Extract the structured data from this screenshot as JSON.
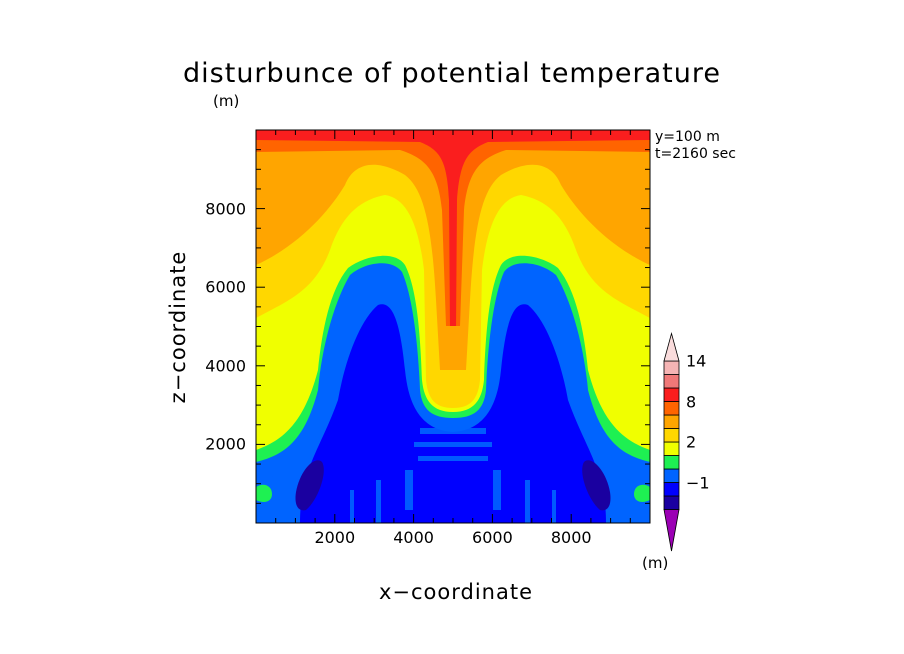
{
  "chart_data": {
    "type": "heatmap",
    "title": "disturbunce of potential temperature",
    "xlabel": "x−coordinate",
    "ylabel": "z−coordinate",
    "unit_top": "(m)",
    "unit_colorbar": "(m)",
    "annotations": [
      "y=100 m",
      "t=2160 sec"
    ],
    "xlim": [
      0,
      10000
    ],
    "ylim": [
      0,
      10000
    ],
    "x_ticks": [
      2000,
      4000,
      6000,
      8000
    ],
    "x_tick_labels": [
      "2000",
      "4000",
      "6000",
      "8000"
    ],
    "y_ticks": [
      2000,
      4000,
      6000,
      8000
    ],
    "y_tick_labels": [
      "2000",
      "4000",
      "6000",
      "8000"
    ],
    "colorbar": {
      "levels": [
        {
          "label": "",
          "color": "#9b00b4"
        },
        {
          "label": "",
          "color": "#1a00a0"
        },
        {
          "label": "−1",
          "color": "#0000ff"
        },
        {
          "label": "",
          "color": "#0064ff"
        },
        {
          "label": "",
          "color": "#1ef052"
        },
        {
          "label": "2",
          "color": "#f0ff00"
        },
        {
          "label": "",
          "color": "#ffd700"
        },
        {
          "label": "",
          "color": "#ffa500"
        },
        {
          "label": "8",
          "color": "#ff6400"
        },
        {
          "label": "",
          "color": "#fa1e1e"
        },
        {
          "label": "",
          "color": "#f07878"
        },
        {
          "label": "14",
          "color": "#f5b4b4"
        },
        {
          "label": "",
          "color": "#fadcdc"
        }
      ]
    }
  }
}
